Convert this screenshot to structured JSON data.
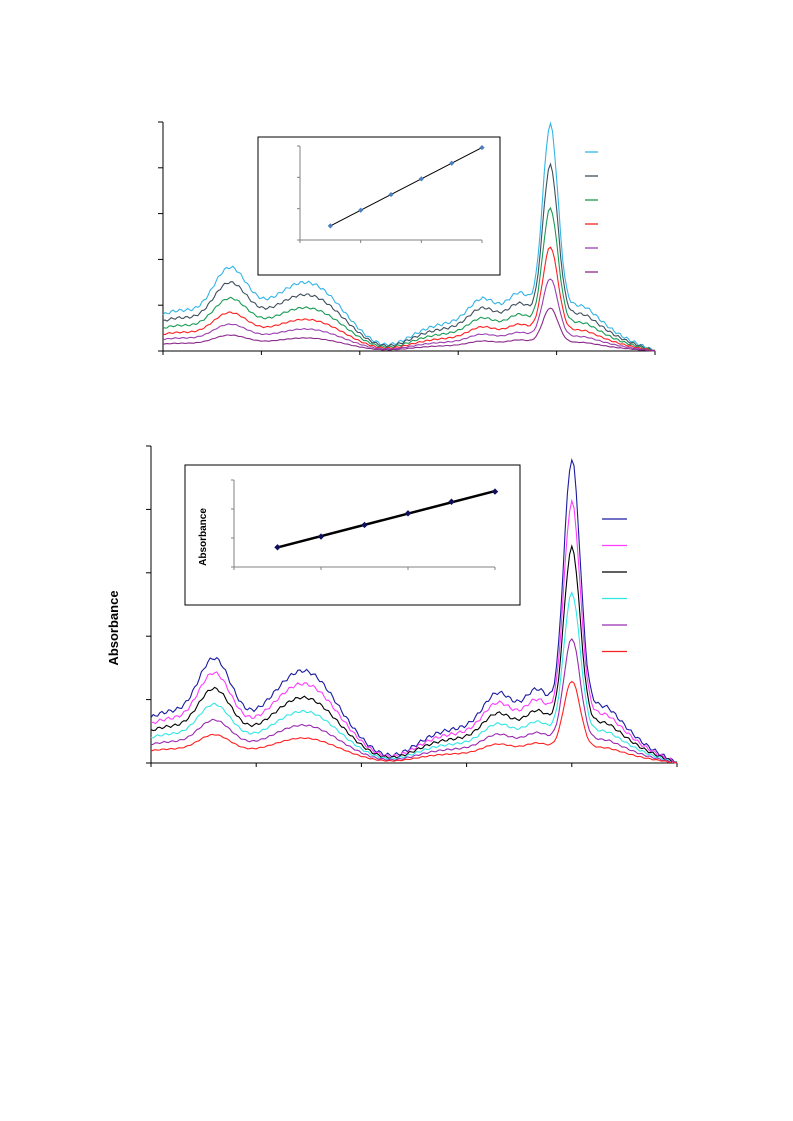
{
  "chart_data": [
    {
      "type": "line",
      "title": "",
      "xlabel": "",
      "ylabel": "",
      "ylim": [
        0,
        5
      ],
      "x_ticks": 5,
      "y_ticks": 5,
      "grid": false,
      "legend_placement": "right",
      "series": [
        {
          "color": "#33b5e5",
          "scale": 1.0
        },
        {
          "color": "#3f4f5c",
          "scale": 0.82
        },
        {
          "color": "#1a9a55",
          "scale": 0.63
        },
        {
          "color": "#ff2020",
          "scale": 0.46
        },
        {
          "color": "#9a3fb0",
          "scale": 0.32
        },
        {
          "color": "#8a2a8a",
          "scale": 0.19
        }
      ],
      "inset": {
        "type": "scatter",
        "x": [
          1,
          2,
          3,
          4,
          5,
          6
        ],
        "y": [
          0.45,
          0.95,
          1.45,
          1.95,
          2.45,
          2.95
        ],
        "xlim": [
          0,
          6
        ],
        "ylim": [
          0,
          3
        ],
        "fit": "linear",
        "marker_color": "#4a7fc0",
        "line_color": "#000000"
      }
    },
    {
      "type": "line",
      "title": "",
      "xlabel": "",
      "ylabel": "Absorbance",
      "ylim": [
        0,
        5
      ],
      "x_ticks": 5,
      "y_ticks": 5,
      "grid": false,
      "legend_placement": "right",
      "series": [
        {
          "color": "#1a1aa0",
          "scale": 1.0
        },
        {
          "color": "#ff3cff",
          "scale": 0.86
        },
        {
          "color": "#000000",
          "scale": 0.71
        },
        {
          "color": "#33e6e6",
          "scale": 0.56
        },
        {
          "color": "#9a2ab0",
          "scale": 0.41
        },
        {
          "color": "#ff2020",
          "scale": 0.27
        }
      ],
      "inset": {
        "type": "scatter",
        "ylabel": "Absorbance",
        "x": [
          1,
          2,
          3,
          4,
          5,
          6
        ],
        "y": [
          0.68,
          1.05,
          1.45,
          1.85,
          2.25,
          2.6
        ],
        "xlim": [
          0,
          6
        ],
        "ylim": [
          0,
          3
        ],
        "fit": "linear",
        "marker_color": "#10105a",
        "line_color": "#000000"
      }
    }
  ]
}
